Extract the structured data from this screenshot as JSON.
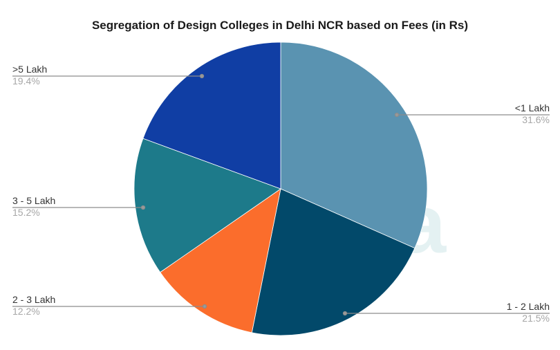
{
  "title": "Segregation of Design Colleges in Delhi NCR based on Fees (in Rs)",
  "watermark": "niksha",
  "chart_data": {
    "type": "pie",
    "title": "Segregation of Design Colleges in Delhi NCR based on Fees (in Rs)",
    "categories": [
      "<1 Lakh",
      "1 - 2 Lakh",
      "2 - 3 Lakh",
      "3 - 5 Lakh",
      ">5 Lakh"
    ],
    "values": [
      31.6,
      21.5,
      12.2,
      15.2,
      19.4
    ],
    "labels": [
      "31.6%",
      "21.5%",
      "12.2%",
      "15.2%",
      "19.4%"
    ],
    "colors": [
      "#5a93b1",
      "#02496a",
      "#fb6d2c",
      "#1d7a8a",
      "#103ea4"
    ],
    "start_angle": "12 o'clock",
    "direction": "clockwise",
    "legend": "none",
    "data_labels": "outside with leader lines"
  },
  "labels": {
    "lt1": {
      "name": "<1 Lakh",
      "pct": "31.6%"
    },
    "l1_2": {
      "name": "1 - 2 Lakh",
      "pct": "21.5%"
    },
    "l2_3": {
      "name": "2 - 3 Lakh",
      "pct": "12.2%"
    },
    "l3_5": {
      "name": "3 - 5 Lakh",
      "pct": "15.2%"
    },
    "gt5": {
      "name": ">5 Lakh",
      "pct": "19.4%"
    }
  }
}
